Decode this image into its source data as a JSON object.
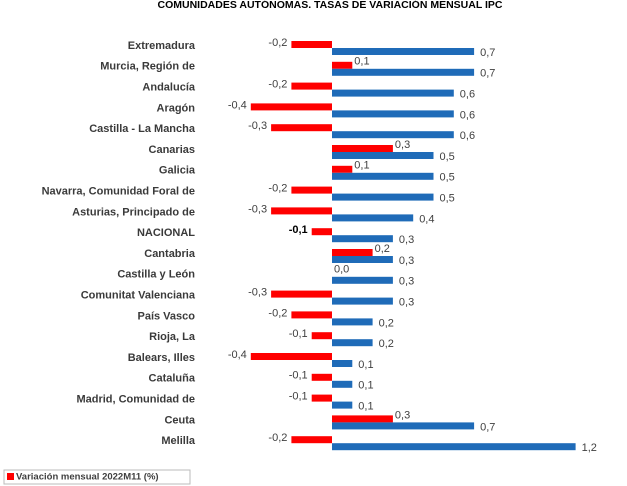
{
  "chart_data": {
    "type": "bar",
    "orientation": "horizontal",
    "title": "COMUNIDADES AUTÓNOMAS. TASAS DE VARIACIÓN MENSUAL IPC",
    "categories": [
      "Extremadura",
      "Murcia, Región de",
      "Andalucía",
      "Aragón",
      "Castilla - La Mancha",
      "Canarias",
      "Galicia",
      "Navarra, Comunidad Foral de",
      "Asturias, Principado de",
      "NACIONAL",
      "Cantabria",
      "Castilla y León",
      "Comunitat Valenciana",
      "País Vasco",
      "Rioja, La",
      "Balears, Illes",
      "Cataluña",
      "Madrid, Comunidad de",
      "Ceuta",
      "Melilla"
    ],
    "series": [
      {
        "name": "Variación mensual 2022M11 (%)",
        "color": "#ff0000",
        "values": [
          -0.2,
          0.1,
          -0.2,
          -0.4,
          -0.3,
          0.3,
          0.1,
          -0.2,
          -0.3,
          -0.1,
          0.2,
          0.0,
          -0.3,
          -0.2,
          -0.1,
          -0.4,
          -0.1,
          -0.1,
          0.3,
          -0.2
        ],
        "value_labels": [
          "-0,2",
          "0,1",
          "-0,2",
          "-0,4",
          "-0,3",
          "0,3",
          "0,1",
          "-0,2",
          "-0,3",
          "-0,1",
          "0,2",
          "0,0",
          "-0,3",
          "-0,2",
          "-0,1",
          "-0,4",
          "-0,1",
          "-0,1",
          "0,3",
          "-0,2"
        ]
      },
      {
        "color": "#1f6bb8",
        "values": [
          0.7,
          0.7,
          0.6,
          0.6,
          0.6,
          0.5,
          0.5,
          0.5,
          0.4,
          0.3,
          0.3,
          0.3,
          0.3,
          0.2,
          0.2,
          0.1,
          0.1,
          0.1,
          0.7,
          1.2
        ],
        "value_labels": [
          "0,7",
          "0,7",
          "0,6",
          "0,6",
          "0,6",
          "0,5",
          "0,5",
          "0,5",
          "0,4",
          "0,3",
          "0,3",
          "0,3",
          "0,3",
          "0,2",
          "0,2",
          "0,1",
          "0,1",
          "0,1",
          "0,7",
          "1,2"
        ]
      }
    ],
    "emphasis": "NACIONAL",
    "legend": "bottom-left"
  }
}
